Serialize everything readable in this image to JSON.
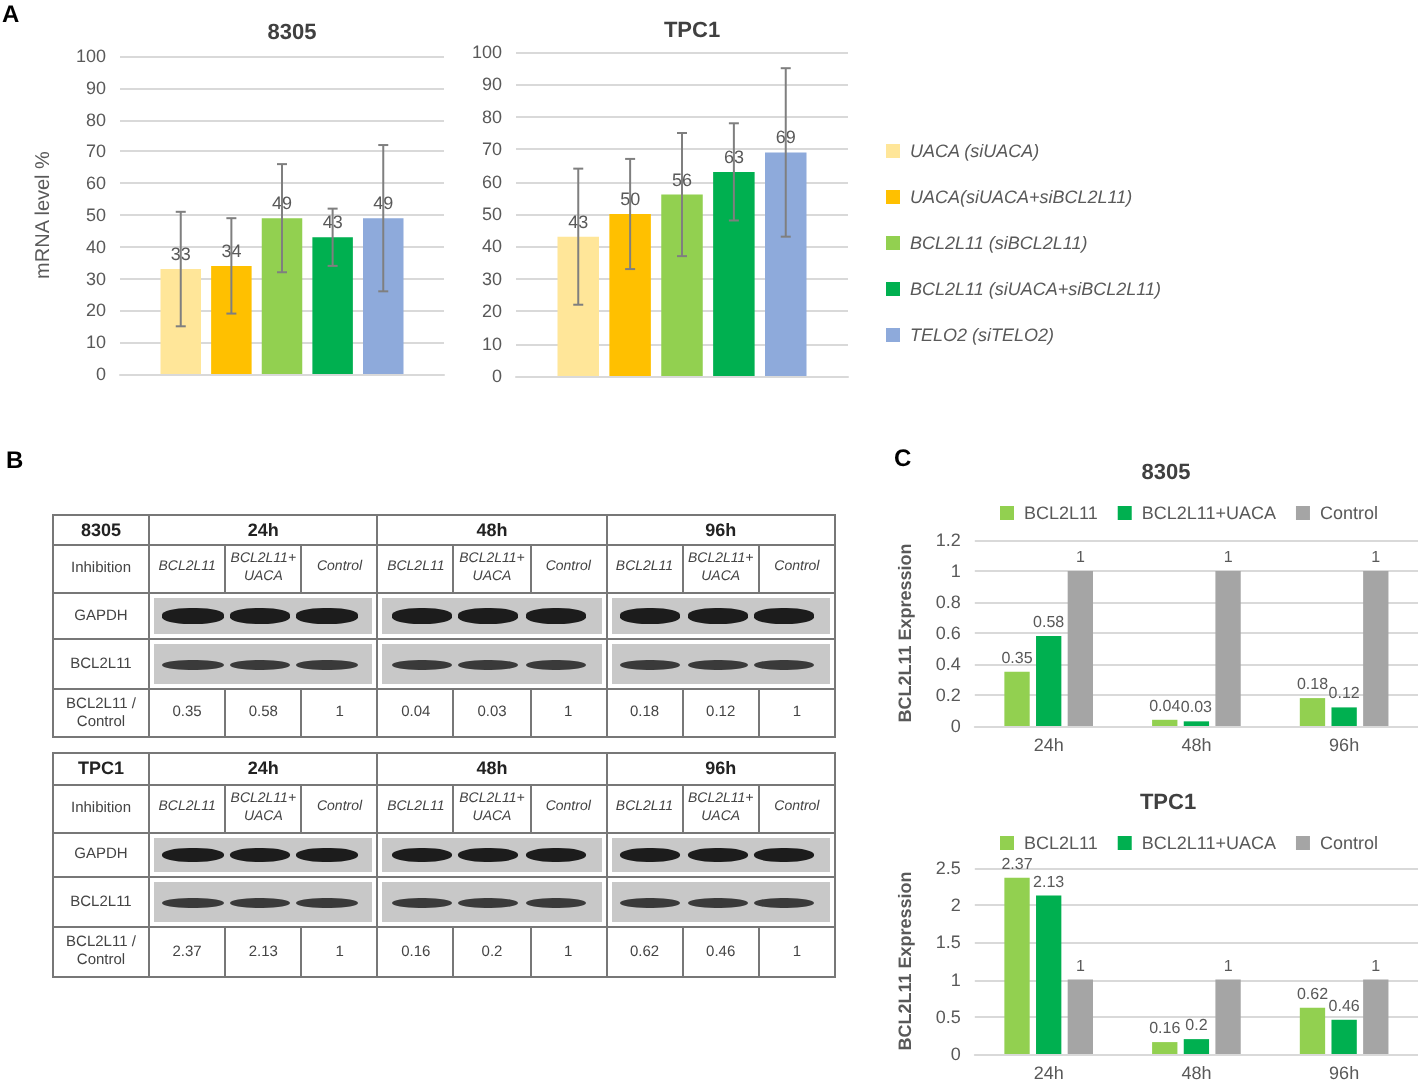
{
  "chart_data": [
    {
      "type": "bar",
      "title": "8305",
      "ylabel": "mRNA level %",
      "annotations": [
        "A"
      ],
      "categories": [
        null
      ],
      "series": [
        {
          "color": "#ffe699",
          "values": [
            33
          ],
          "errors": [
            18
          ]
        },
        {
          "color": "#ffc000",
          "values": [
            34
          ],
          "errors": [
            15
          ]
        },
        {
          "color": "#92d050",
          "values": [
            49
          ],
          "errors": [
            17
          ]
        },
        {
          "color": "#00b050",
          "values": [
            43
          ],
          "errors": [
            9
          ]
        },
        {
          "color": "#8eaadb",
          "values": [
            49
          ],
          "errors": [
            23
          ]
        }
      ],
      "ylim": [
        0,
        100
      ],
      "yticks": [
        0,
        10,
        20,
        30,
        40,
        50,
        60,
        70,
        80,
        90,
        100
      ],
      "grid": "y",
      "data_labels": true
    },
    {
      "type": "bar",
      "title": "TPC1",
      "categories": [
        null
      ],
      "series": [
        {
          "name": "UACA (siUACA)",
          "color": "#ffe699",
          "values": [
            43
          ],
          "errors": [
            21
          ]
        },
        {
          "name": "UACA(siUACA+siBCL2L11)",
          "color": "#ffc000",
          "values": [
            50
          ],
          "errors": [
            17
          ]
        },
        {
          "name": "BCL2L11 (siBCL2L11)",
          "color": "#92d050",
          "values": [
            56
          ],
          "errors": [
            19
          ]
        },
        {
          "name": "BCL2L11 (siUACA+siBCL2L11)",
          "color": "#00b050",
          "values": [
            63
          ],
          "errors": [
            15
          ]
        },
        {
          "name": "TELO2 (siTELO2)",
          "color": "#8eaadb",
          "values": [
            69
          ],
          "errors": [
            26
          ]
        }
      ],
      "ylim": [
        0,
        100
      ],
      "yticks": [
        0,
        10,
        20,
        30,
        40,
        50,
        60,
        70,
        80,
        90,
        100
      ],
      "grid": "y",
      "data_labels": true,
      "legend": "right"
    },
    {
      "type": "other",
      "title": "8305",
      "annotations": [
        "B"
      ],
      "categories": [
        "24h",
        "48h",
        "96h"
      ],
      "y_categories": [
        "Inhibition",
        "GAPDH",
        "BCL2L11",
        "BCL2L11 / Control"
      ],
      "series": [
        {
          "name": "BCL2L11",
          "values": [
            0.35,
            0.04,
            0.18
          ]
        },
        {
          "name": "BCL2L11+ UACA",
          "values": [
            0.58,
            0.03,
            0.12
          ]
        },
        {
          "name": "Control",
          "values": [
            1,
            1,
            1
          ]
        }
      ],
      "data_labels": true
    },
    {
      "type": "other",
      "title": "TPC1",
      "categories": [
        "24h",
        "48h",
        "96h"
      ],
      "y_categories": [
        "Inhibition",
        "GAPDH",
        "BCL2L11",
        "BCL2L11 / Control"
      ],
      "series": [
        {
          "name": "BCL2L11",
          "values": [
            2.37,
            0.16,
            0.62
          ]
        },
        {
          "name": "BCL2L11+ UACA",
          "values": [
            2.13,
            0.2,
            0.46
          ]
        },
        {
          "name": "Control",
          "values": [
            1,
            1,
            1
          ]
        }
      ],
      "data_labels": true
    },
    {
      "type": "bar",
      "title": "8305",
      "ylabel": "BCL2L11 Expression",
      "annotations": [
        "C"
      ],
      "categories": [
        "24h",
        "48h",
        "96h"
      ],
      "series": [
        {
          "name": "BCL2L11",
          "color": "#92d050",
          "values": [
            0.35,
            0.04,
            0.18
          ]
        },
        {
          "name": "BCL2L11+UACA",
          "color": "#00b050",
          "values": [
            0.58,
            0.03,
            0.12
          ]
        },
        {
          "name": "Control",
          "color": "#a5a5a5",
          "values": [
            1,
            1,
            1
          ]
        }
      ],
      "ylim": [
        0,
        1.2
      ],
      "yticks": [
        0,
        0.2,
        0.4,
        0.6,
        0.8,
        1,
        1.2
      ],
      "grid": "y",
      "data_labels": true,
      "legend": "top"
    },
    {
      "type": "bar",
      "title": "TPC1",
      "ylabel": "BCL2L11 Expression",
      "categories": [
        "24h",
        "48h",
        "96h"
      ],
      "series": [
        {
          "name": "BCL2L11",
          "color": "#92d050",
          "values": [
            2.37,
            0.16,
            0.62
          ]
        },
        {
          "name": "BCL2L11+UACA",
          "color": "#00b050",
          "values": [
            2.13,
            0.2,
            0.46
          ]
        },
        {
          "name": "Control",
          "color": "#a5a5a5",
          "values": [
            1,
            1,
            1
          ]
        }
      ],
      "ylim": [
        0,
        2.5
      ],
      "yticks": [
        0,
        0.5,
        1,
        1.5,
        2,
        2.5
      ],
      "grid": "y",
      "data_labels": true,
      "legend": "top"
    }
  ]
}
